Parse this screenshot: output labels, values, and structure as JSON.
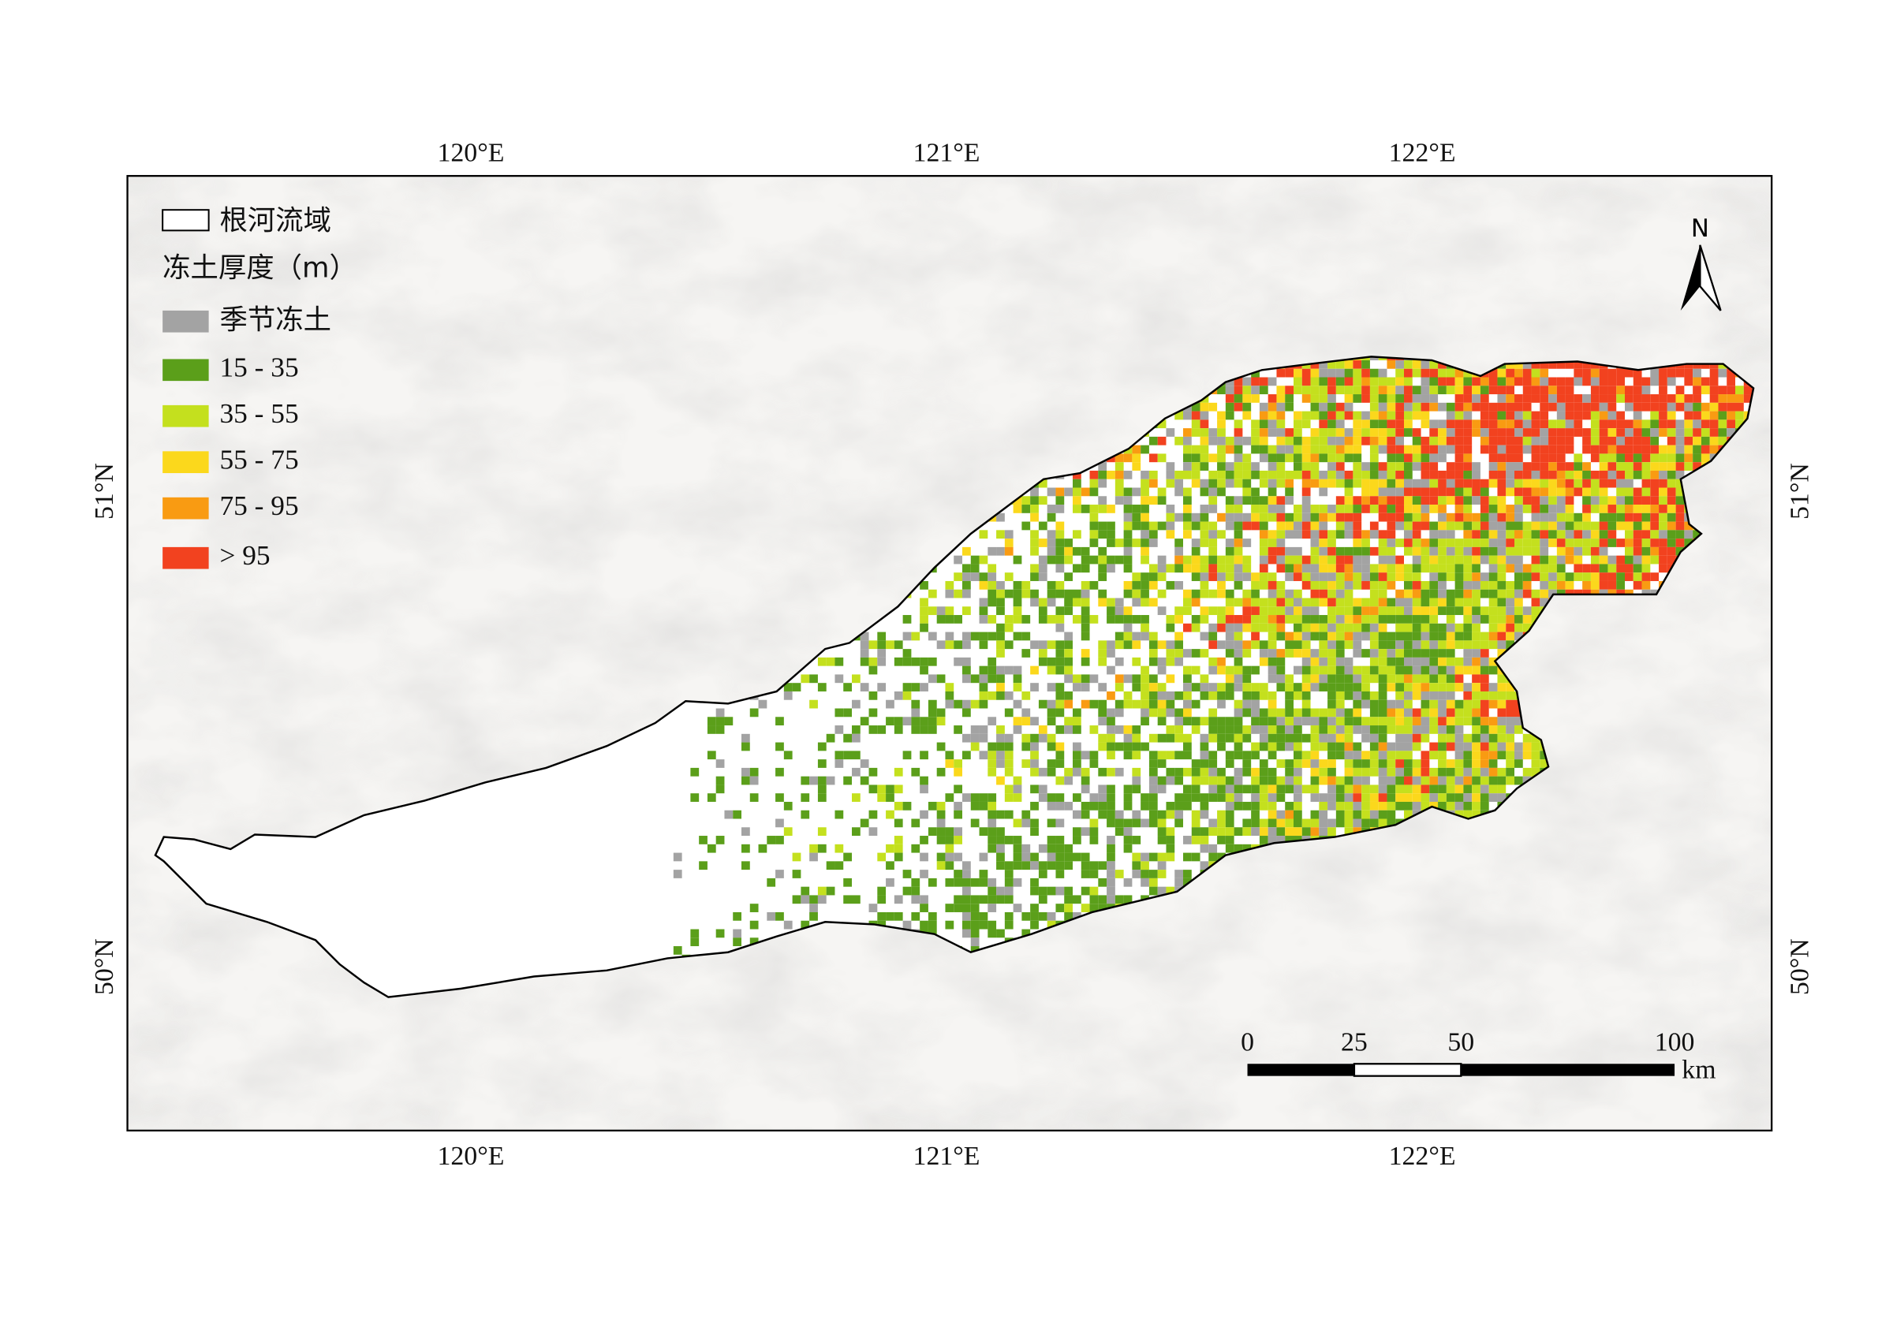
{
  "map": {
    "legend": {
      "boundary": "根河流域",
      "title": "冻土厚度（m）",
      "items": [
        {
          "label": "季节冻土",
          "color": "#a3a3a3"
        },
        {
          "label": "15 - 35",
          "color": "#5b9f1a"
        },
        {
          "label": "35 - 55",
          "color": "#c4e01e"
        },
        {
          "label": "55 - 75",
          "color": "#fbd81c"
        },
        {
          "label": "75 - 95",
          "color": "#f99b12"
        },
        {
          "label": "> 95",
          "color": "#f2421f"
        }
      ]
    },
    "x_ticks": [
      "120°E",
      "121°E",
      "122°E"
    ],
    "y_ticks": [
      "51°N",
      "50°N"
    ],
    "north": "N",
    "scale_bar": {
      "labels": [
        "0",
        "25",
        "50",
        "100"
      ],
      "unit": "km"
    }
  }
}
